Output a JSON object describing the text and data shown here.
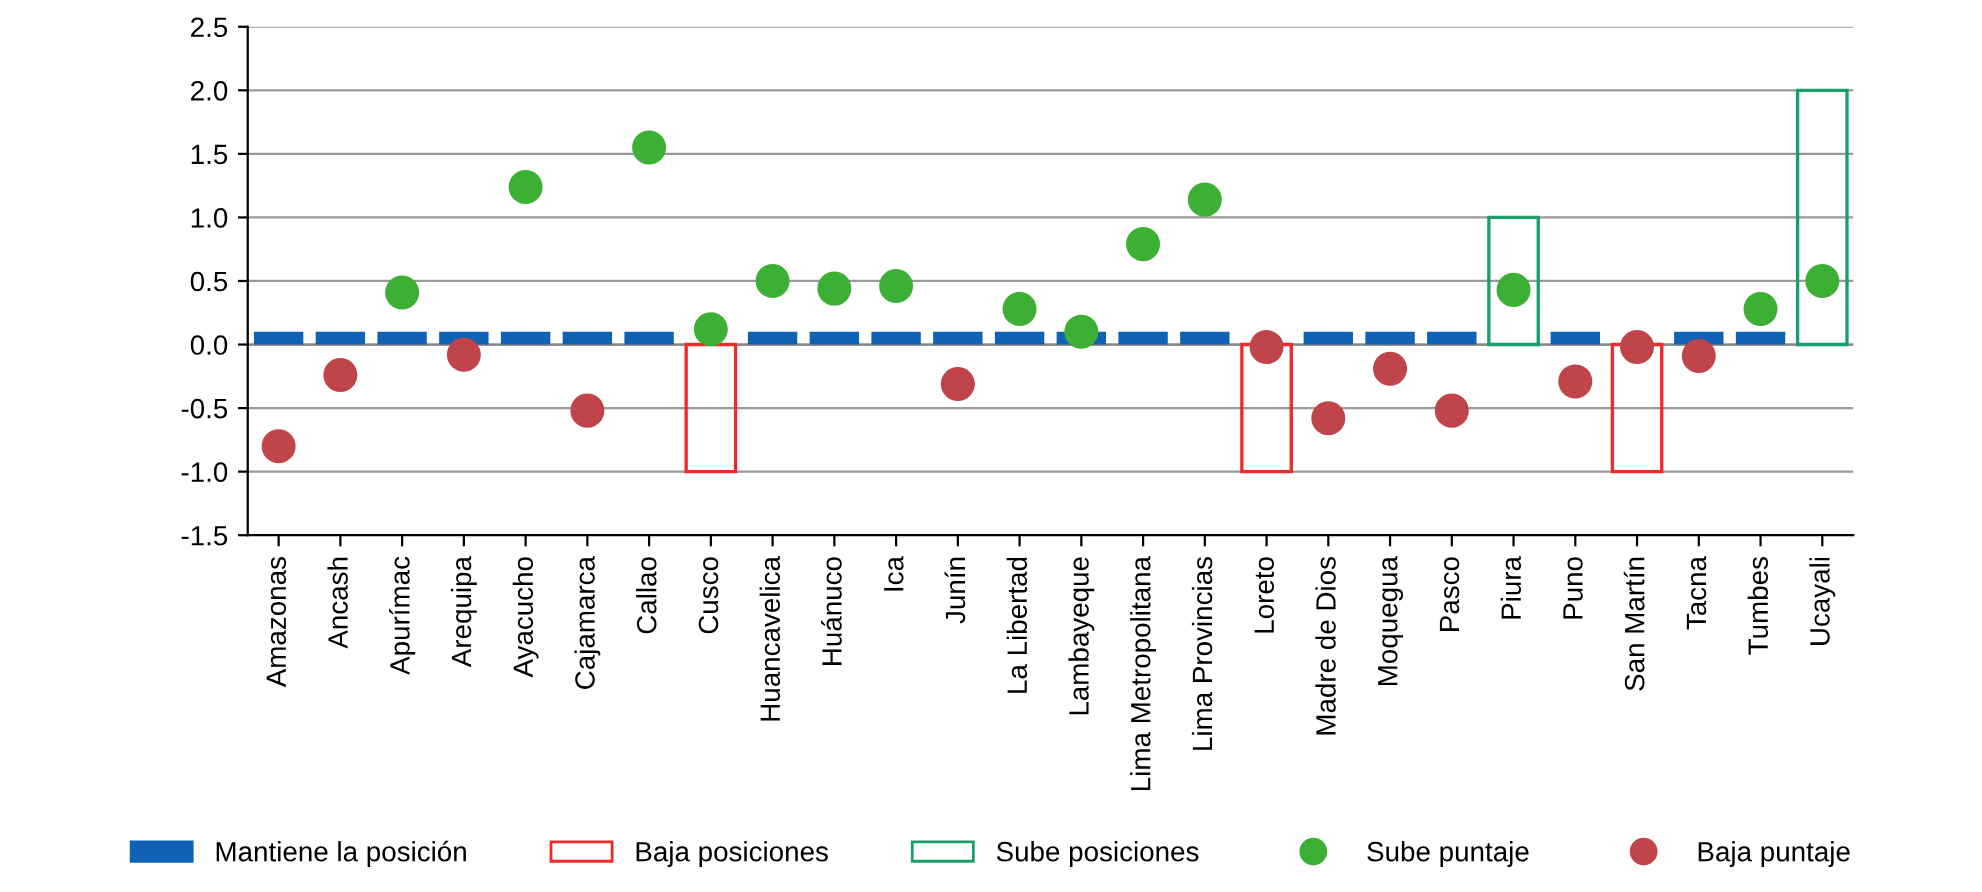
{
  "chart_data": {
    "type": "bar",
    "categories": [
      "Amazonas",
      "Ancash",
      "Apurímac",
      "Arequipa",
      "Ayacucho",
      "Cajamarca",
      "Callao",
      "Cusco",
      "Huancavelica",
      "Huánuco",
      "Ica",
      "Junín",
      "La Libertad",
      "Lambayeque",
      "Lima Metropolitana",
      "Lima Provincias",
      "Loreto",
      "Madre de Dios",
      "Moquegua",
      "Pasco",
      "Piura",
      "Puno",
      "San Martín",
      "Tacna",
      "Tumbes",
      "Ucayali"
    ],
    "series": [
      {
        "name": "Mantiene la posición",
        "color": "#0f62b4",
        "values": [
          0.1,
          0.1,
          0.1,
          0.1,
          0.1,
          0.1,
          0.1,
          null,
          0.1,
          0.1,
          0.1,
          0.1,
          0.1,
          0.1,
          0.1,
          0.1,
          null,
          0.1,
          0.1,
          0.1,
          null,
          0.1,
          null,
          0.1,
          0.1,
          null
        ]
      },
      {
        "name": "Baja posiciones",
        "line_style": "solid",
        "color": "#ee2a2a",
        "values": [
          null,
          null,
          null,
          null,
          null,
          null,
          null,
          -1,
          null,
          null,
          null,
          null,
          null,
          null,
          null,
          null,
          -1,
          null,
          null,
          null,
          null,
          null,
          -1,
          null,
          null,
          null
        ]
      },
      {
        "name": "Sube posiciones",
        "line_style": "solid",
        "color": "#1a9e6a",
        "values": [
          null,
          null,
          null,
          null,
          null,
          null,
          null,
          null,
          null,
          null,
          null,
          null,
          null,
          null,
          null,
          null,
          null,
          null,
          null,
          null,
          1,
          null,
          null,
          null,
          null,
          2
        ]
      },
      {
        "name": "Sube puntaje",
        "type": "scatter",
        "color": "#3cb034",
        "values": [
          null,
          null,
          0.41,
          null,
          1.24,
          null,
          1.55,
          0.12,
          0.5,
          0.44,
          0.46,
          null,
          0.28,
          0.1,
          0.79,
          1.14,
          null,
          null,
          null,
          null,
          0.43,
          null,
          null,
          null,
          0.28,
          0.5
        ]
      },
      {
        "name": "Baja puntaje",
        "type": "scatter",
        "color": "#c0454a",
        "values": [
          -0.8,
          -0.24,
          null,
          -0.08,
          null,
          -0.52,
          null,
          null,
          null,
          null,
          null,
          -0.31,
          null,
          null,
          null,
          null,
          -0.02,
          -0.58,
          -0.19,
          -0.52,
          null,
          -0.29,
          -0.02,
          -0.09,
          null,
          null
        ]
      }
    ],
    "ylim": [
      -1.5,
      2.5
    ],
    "yticks": [
      {
        "value": -1.5,
        "label": "-1.5"
      },
      {
        "value": -1,
        "label": "-1.0"
      },
      {
        "value": -0.5,
        "label": "-0.5"
      },
      {
        "value": 0,
        "label": "0.0"
      },
      0.5,
      {
        "value": 1,
        "label": "1.0"
      },
      1.5,
      {
        "value": 2,
        "label": "2.0"
      },
      2.5
    ],
    "grid": "y",
    "legend": "bottom",
    "marker": "circle"
  }
}
